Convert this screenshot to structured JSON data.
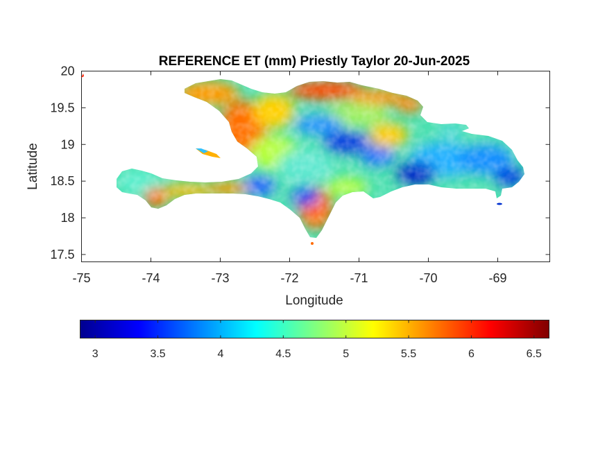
{
  "figure": {
    "title": "REFERENCE ET (mm) Priestly Taylor 20-Jun-2025"
  },
  "axes": {
    "xlabel": "Longitude",
    "ylabel": "Latitude",
    "xlim": [
      -75,
      -68.25
    ],
    "ylim": [
      17.4,
      20
    ],
    "xticks": [
      -75,
      -74,
      -73,
      -72,
      -71,
      -70,
      -69
    ],
    "xtick_labels": [
      "-75",
      "-74",
      "-73",
      "-72",
      "-71",
      "-70",
      "-69"
    ],
    "yticks": [
      17.5,
      18,
      18.5,
      19,
      19.5,
      20
    ],
    "ytick_labels": [
      "17.5",
      "18",
      "18.5",
      "19",
      "19.5",
      "20"
    ]
  },
  "colorbar": {
    "colormap": "jet",
    "range": [
      2.88,
      6.62
    ],
    "ticks": [
      3,
      3.5,
      4,
      4.5,
      5,
      5.5,
      6,
      6.5
    ],
    "tick_labels": [
      "3",
      "3.5",
      "4",
      "4.5",
      "5",
      "5.5",
      "6",
      "6.5"
    ]
  },
  "colors": {
    "axes_line": "#262626",
    "text": "#262626",
    "title": "#000000"
  }
}
